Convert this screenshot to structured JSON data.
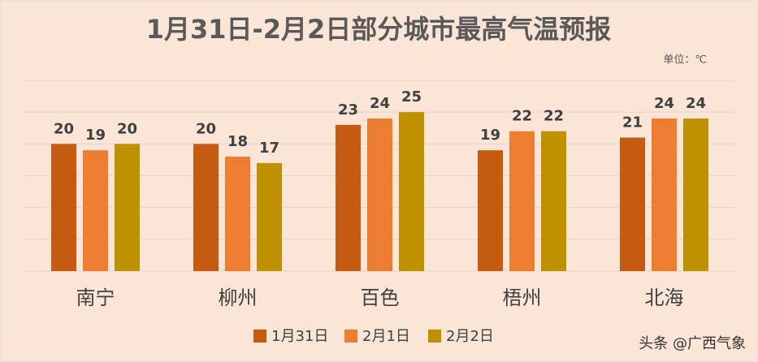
{
  "chart_data": {
    "type": "bar",
    "title": "1月31日-2月2日部分城市最高气温预报",
    "unit_note": "单位：℃",
    "watermark": "头条 @广西气象",
    "categories": [
      "南宁",
      "柳州",
      "百色",
      "梧州",
      "北海"
    ],
    "series": [
      {
        "name": "1月31日",
        "color": "#c55a11",
        "values": [
          20,
          20,
          23,
          19,
          21
        ]
      },
      {
        "name": "2月1日",
        "color": "#ed7d31",
        "values": [
          19,
          18,
          24,
          22,
          24
        ]
      },
      {
        "name": "2月2日",
        "color": "#bf9000",
        "values": [
          20,
          17,
          25,
          22,
          24
        ]
      }
    ],
    "ylim": [
      0,
      30
    ],
    "yticks": [
      0,
      5,
      10,
      15,
      20,
      25,
      30
    ],
    "grid": true
  }
}
